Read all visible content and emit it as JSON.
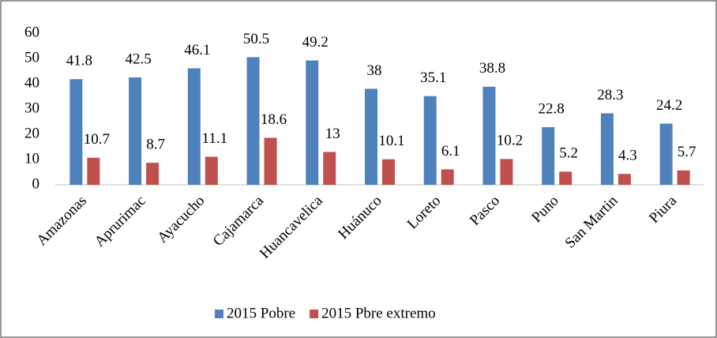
{
  "chart_data": {
    "type": "bar",
    "categories": [
      "Amazonas",
      "Aprurimac",
      "Ayacucho",
      "Cajamarca",
      "Huancavelica",
      "Huánuco",
      "Loreto",
      "Pasco",
      "Puno",
      "San Martin",
      "Piura"
    ],
    "series": [
      {
        "name": "2015 Pobre",
        "color": "#4f81bd",
        "values": [
          41.8,
          42.5,
          46.1,
          50.5,
          49.2,
          38,
          35.1,
          38.8,
          22.8,
          28.3,
          24.2
        ]
      },
      {
        "name": "2015 Pbre extremo",
        "color": "#c0504d",
        "values": [
          10.7,
          8.7,
          11.1,
          18.6,
          13,
          10.1,
          6.1,
          10.2,
          5.2,
          4.3,
          5.7
        ]
      }
    ],
    "ylim": [
      0,
      60
    ],
    "yticks": [
      0,
      10,
      20,
      30,
      40,
      50,
      60
    ],
    "grid": false,
    "legend": "bottom"
  }
}
